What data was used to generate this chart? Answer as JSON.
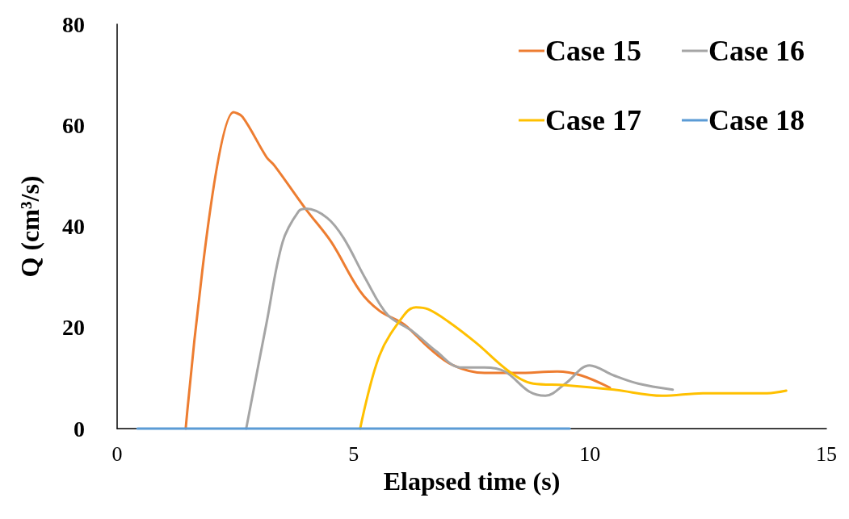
{
  "chart_data": {
    "type": "line",
    "xlabel": "Elapsed time (s)",
    "ylabel": "Q (cm³/s)",
    "xlim": [
      0,
      15
    ],
    "xticks": [
      0,
      5,
      10,
      15
    ],
    "ylim": [
      0,
      80
    ],
    "yticks": [
      0,
      20,
      40,
      60,
      80
    ],
    "grid": false,
    "legend": "top right",
    "marker": "none",
    "line_style": "solid",
    "series": [
      {
        "name": "Case 15",
        "color": "#ed7d31",
        "x": [
          1.45,
          2.46,
          2.65,
          3.16,
          3.33,
          4.0,
          4.53,
          5.13,
          5.55,
          6.07,
          6.58,
          7.09,
          7.77,
          8.46,
          9.31,
          9.82,
          10.42
        ],
        "values": [
          0,
          62.6,
          61.7,
          53.7,
          52,
          43.3,
          36.9,
          27.3,
          23.3,
          20.6,
          16.1,
          12.6,
          11.0,
          11.0,
          11.3,
          10.5,
          8.1
        ]
      },
      {
        "name": "Case 16",
        "color": "#a5a5a5",
        "x": [
          2.73,
          3.16,
          3.5,
          3.84,
          4.0,
          4.44,
          4.79,
          5.25,
          5.72,
          6.24,
          6.75,
          7.26,
          7.77,
          8.2,
          8.72,
          9.06,
          9.48,
          9.99,
          10.51,
          11.02,
          11.75
        ],
        "values": [
          0,
          20.9,
          36.9,
          43.0,
          43.5,
          41.7,
          37.7,
          29.7,
          22.5,
          19.3,
          15.3,
          12.1,
          12.1,
          11.3,
          7.3,
          6.5,
          8.9,
          12.5,
          10.5,
          8.9,
          7.7
        ]
      },
      {
        "name": "Case 17",
        "color": "#ffc000",
        "x": [
          5.14,
          5.55,
          6.07,
          6.32,
          6.58,
          7.0,
          7.6,
          8.29,
          8.8,
          9.48,
          10.51,
          11.53,
          12.39,
          13.75,
          14.15
        ],
        "values": [
          0,
          14.5,
          22.5,
          24.0,
          23.6,
          21.2,
          16.9,
          11.3,
          8.9,
          8.6,
          7.7,
          6.5,
          7.0,
          7.0,
          7.5
        ]
      },
      {
        "name": "Case 18",
        "color": "#5b9bd5",
        "x": [
          0.43,
          9.57
        ],
        "values": [
          0,
          0
        ]
      }
    ]
  }
}
